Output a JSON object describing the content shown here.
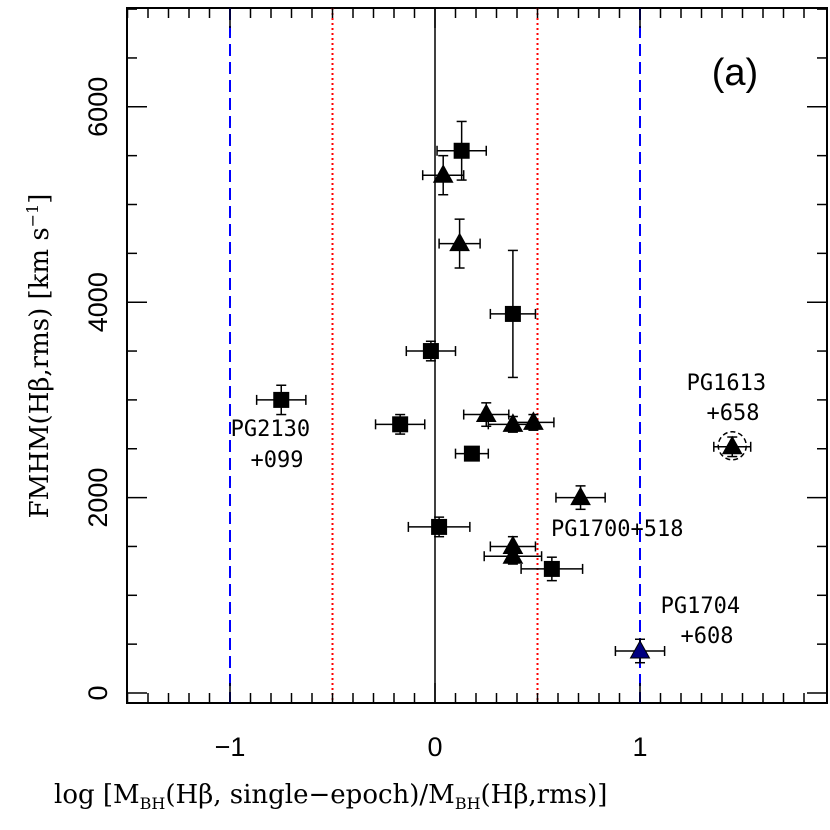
{
  "chart_data": {
    "type": "scatter",
    "title": "",
    "panel_label": "(a)",
    "xlabel": {
      "pre": "log [M",
      "sub1": "BH",
      "mid1": "(Hβ, single−epoch)/M",
      "sub2": "BH",
      "post": "(Hβ,rms)]"
    },
    "ylabel": {
      "pre": "FMHM(Hβ,rms) [km s",
      "sup": "−1",
      "post": "]"
    },
    "xlim": [
      -1.5,
      1.85
    ],
    "ylim": [
      -100,
      7000
    ],
    "x_ticks": [
      {
        "value": -1,
        "label": "−1"
      },
      {
        "value": 0,
        "label": "0"
      },
      {
        "value": 1,
        "label": "1"
      }
    ],
    "y_ticks": [
      {
        "value": 0,
        "label": "0"
      },
      {
        "value": 2000,
        "label": "2000"
      },
      {
        "value": 4000,
        "label": "4000"
      },
      {
        "value": 6000,
        "label": "6000"
      }
    ],
    "reference_lines": [
      {
        "x": 0,
        "style": "solid",
        "color": "#000000"
      },
      {
        "x": -0.5,
        "style": "dotted",
        "color": "#ff0000"
      },
      {
        "x": 0.5,
        "style": "dotted",
        "color": "#ff0000"
      },
      {
        "x": -1,
        "style": "dashed",
        "color": "#0000ff"
      },
      {
        "x": 1,
        "style": "dashed",
        "color": "#0000ff"
      }
    ],
    "series": [
      {
        "marker": "square",
        "points": [
          {
            "x": -0.75,
            "y": 3000,
            "xerr": 0.12,
            "yerr": 150
          },
          {
            "x": 0.13,
            "y": 5550,
            "xerr": 0.12,
            "yerr": 300
          },
          {
            "x": 0.38,
            "y": 3880,
            "xerr": 0.11,
            "yerr": 650
          },
          {
            "x": -0.02,
            "y": 3500,
            "xerr": 0.12,
            "yerr": 100
          },
          {
            "x": -0.17,
            "y": 2750,
            "xerr": 0.12,
            "yerr": 100
          },
          {
            "x": 0.18,
            "y": 2450,
            "xerr": 0.08,
            "yerr": 50
          },
          {
            "x": 0.02,
            "y": 1700,
            "xerr": 0.15,
            "yerr": 100
          },
          {
            "x": 0.57,
            "y": 1270,
            "xerr": 0.15,
            "yerr": 120
          }
        ]
      },
      {
        "marker": "triangle",
        "points": [
          {
            "x": 0.04,
            "y": 5300,
            "xerr": 0.1,
            "yerr": 200
          },
          {
            "x": 0.12,
            "y": 4600,
            "xerr": 0.1,
            "yerr": 250
          },
          {
            "x": 0.25,
            "y": 2850,
            "xerr": 0.11,
            "yerr": 120
          },
          {
            "x": 0.38,
            "y": 2750,
            "xerr": 0.12,
            "yerr": 80
          },
          {
            "x": 0.48,
            "y": 2770,
            "xerr": 0.1,
            "yerr": 80
          },
          {
            "x": 0.71,
            "y": 2000,
            "xerr": 0.12,
            "yerr": 120
          },
          {
            "x": 0.38,
            "y": 1500,
            "xerr": 0.11,
            "yerr": 100
          },
          {
            "x": 0.38,
            "y": 1400,
            "xerr": 0.14,
            "yerr": 80
          },
          {
            "x": 1.45,
            "y": 2520,
            "xerr": 0.09,
            "yerr": 100,
            "circled": true
          },
          {
            "x": 1.0,
            "y": 430,
            "xerr": 0.12,
            "yerr": 120,
            "fill": "#000080"
          }
        ]
      }
    ],
    "annotations": [
      {
        "lines": [
          "PG2130",
          "+099"
        ]
      },
      {
        "lines": [
          "PG1613",
          "+658"
        ]
      },
      {
        "lines": [
          "PG1700+518"
        ]
      },
      {
        "lines": [
          "PG1704",
          "+608"
        ]
      }
    ]
  }
}
